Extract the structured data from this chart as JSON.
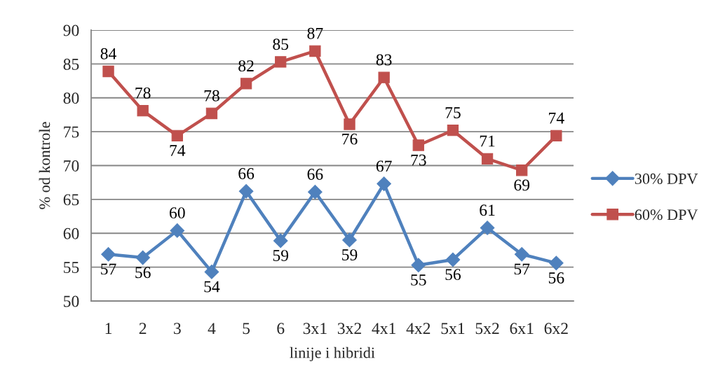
{
  "chart_data": {
    "type": "line",
    "xlabel": "linije i hibridi",
    "ylabel": "% od kontrole",
    "categories": [
      "1",
      "2",
      "3",
      "4",
      "5",
      "6",
      "3x1",
      "3x2",
      "4x1",
      "4x2",
      "5x1",
      "5x2",
      "6x1",
      "6x2"
    ],
    "series": [
      {
        "name": "30% DPV",
        "color": "#4f81bd",
        "marker": "diamond",
        "values": [
          56.9,
          56.4,
          60.4,
          54.3,
          66.2,
          58.9,
          66.1,
          59.0,
          67.3,
          55.3,
          56.1,
          60.8,
          56.9,
          55.6
        ],
        "value_labels": [
          "57",
          "56",
          "60",
          "54",
          "66",
          "59",
          "66",
          "59",
          "67",
          "55",
          "56",
          "61",
          "57",
          "56"
        ]
      },
      {
        "name": "60% DPV",
        "color": "#c0504d",
        "marker": "square",
        "values": [
          83.9,
          78.1,
          74.4,
          77.7,
          82.1,
          85.3,
          86.9,
          76.1,
          83.0,
          73.0,
          75.2,
          71.0,
          69.3,
          74.4
        ],
        "value_labels": [
          "84",
          "78",
          "74",
          "78",
          "82",
          "85",
          "87",
          "76",
          "83",
          "73",
          "75",
          "71",
          "69",
          "74"
        ]
      }
    ],
    "ylim": [
      50,
      90
    ],
    "yticks": [
      50,
      55,
      60,
      65,
      70,
      75,
      80,
      85,
      90
    ],
    "grid": "y",
    "legend": "right",
    "line_style": "solid"
  }
}
